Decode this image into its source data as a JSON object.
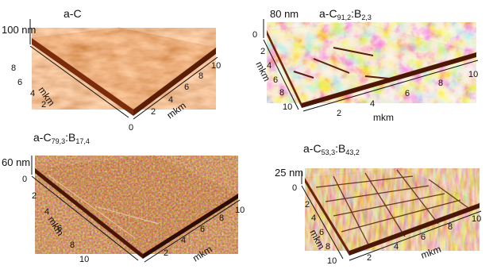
{
  "colors": {
    "background": "#ffffff",
    "surface_light": "#f6e8cc",
    "surface_mid": "#d9894a",
    "surface_dark": "#7a2c0b",
    "surface_shadow": "#3d1004",
    "axis": "#111111"
  },
  "panels": [
    {
      "id": "a",
      "title": {
        "base": "a-C",
        "parts": []
      },
      "z_label": "100 nm",
      "x_axis_label": "mkm",
      "y_axis_label": "mkm",
      "x_ticks": [
        "0",
        "2",
        "4",
        "6",
        "8",
        "10"
      ],
      "y_ticks": [
        "8",
        "6",
        "4",
        "2"
      ],
      "z_ticks": [],
      "texture": "smooth"
    },
    {
      "id": "b",
      "title": {
        "base": "a-C",
        "parts": [
          {
            "sub": "91,2"
          },
          {
            "text": ":B"
          },
          {
            "sub": "2,3"
          }
        ]
      },
      "z_label": "80 nm",
      "x_axis_label": "mkm",
      "y_axis_label": "mkm",
      "x_ticks": [
        "2",
        "4",
        "6",
        "8",
        "10"
      ],
      "y_ticks": [
        "2",
        "4",
        "6",
        "8",
        "10"
      ],
      "z_ticks": [
        "0"
      ],
      "texture": "light"
    },
    {
      "id": "c",
      "title": {
        "base": "a-C",
        "parts": [
          {
            "sub": "79,3"
          },
          {
            "text": ":B"
          },
          {
            "sub": "17,4"
          }
        ]
      },
      "z_label": "60 nm",
      "x_axis_label": "mkm",
      "y_axis_label": "mkm",
      "x_ticks": [
        "2",
        "4",
        "6",
        "8",
        "10"
      ],
      "y_ticks": [
        "2",
        "4",
        "6",
        "8",
        "10"
      ],
      "z_ticks": [
        "0"
      ],
      "texture": "dark"
    },
    {
      "id": "d",
      "title": {
        "base": "a-C",
        "parts": [
          {
            "sub": "53,3"
          },
          {
            "text": ":B"
          },
          {
            "sub": "43,2"
          }
        ]
      },
      "z_label": "25 nm",
      "x_axis_label": "mkm",
      "y_axis_label": "mkm",
      "x_ticks": [
        "2",
        "4",
        "6",
        "8",
        "10"
      ],
      "y_ticks": [
        "2",
        "4",
        "6",
        "8",
        "10"
      ],
      "z_ticks": [
        "0"
      ],
      "texture": "grid"
    }
  ]
}
